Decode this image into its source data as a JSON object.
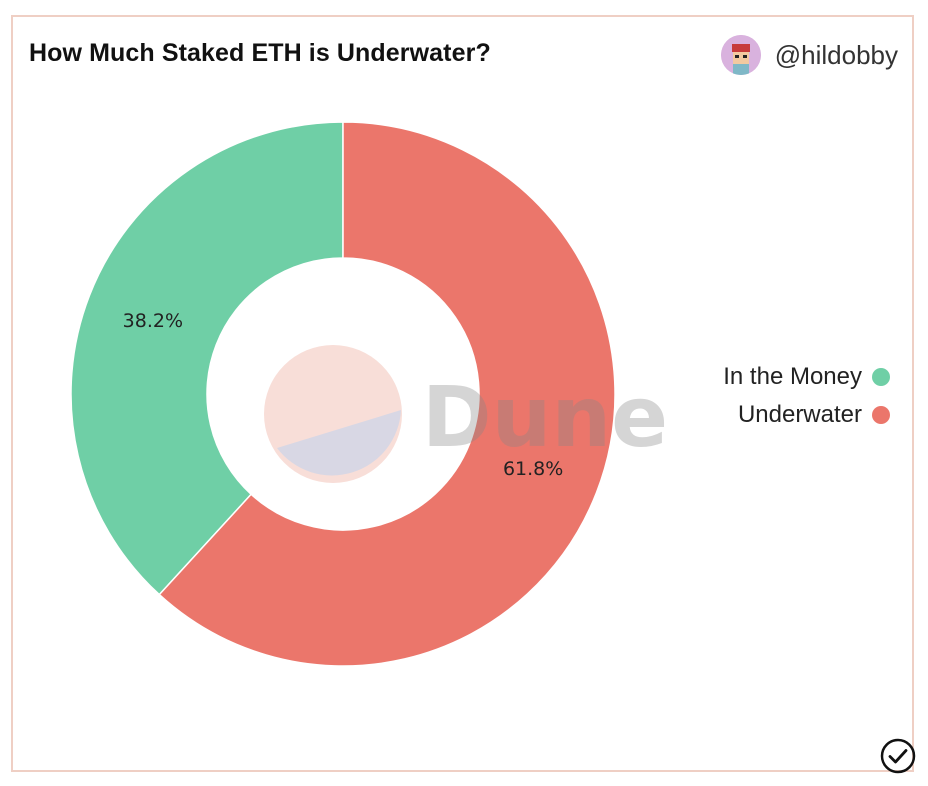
{
  "header": {
    "title": "How Much Staked ETH is Underwater?",
    "author_handle": "@hildobby",
    "avatar_icon": "avatar-icon"
  },
  "watermark": "Dune",
  "colors": {
    "in_the_money": "#6fcfa6",
    "underwater": "#eb766b",
    "border": "#efcfc4"
  },
  "chart_data": {
    "type": "pie",
    "subtype": "donut",
    "title": "How Much Staked ETH is Underwater?",
    "categories": [
      "In the Money",
      "Underwater"
    ],
    "values": [
      38.2,
      61.8
    ],
    "labels": [
      "38.2%",
      "61.8%"
    ],
    "legend_position": "right"
  },
  "footer": {
    "check_icon": "check-circle-icon"
  }
}
